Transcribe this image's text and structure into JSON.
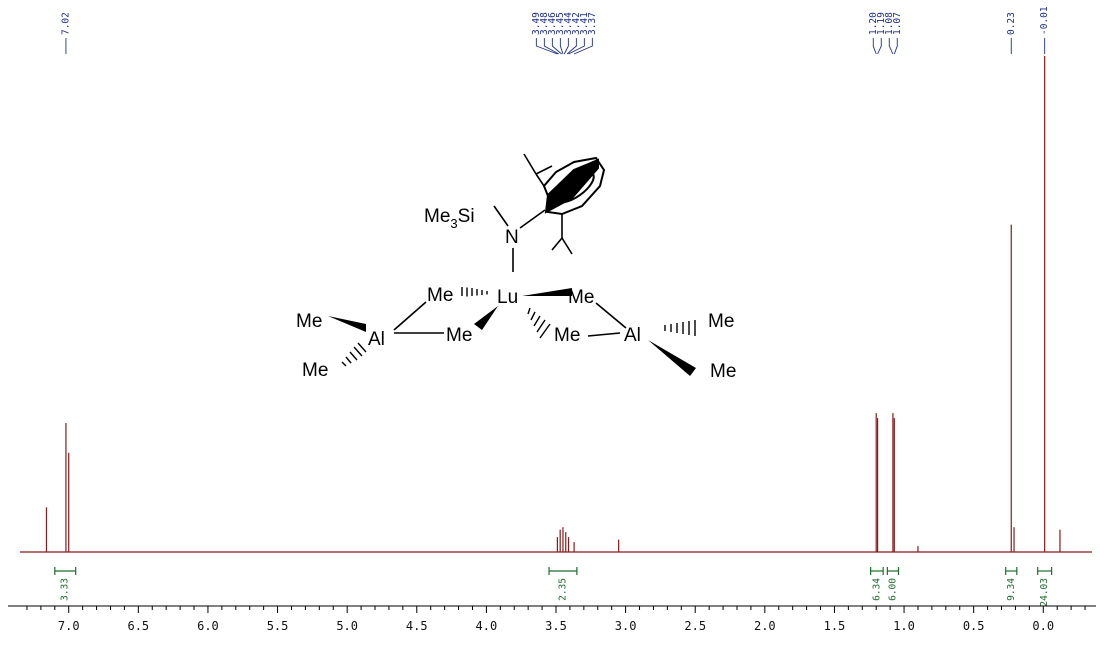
{
  "chart_data": {
    "type": "line",
    "title": "",
    "xlabel": "",
    "ylabel": "",
    "x_axis": {
      "reversed": true,
      "xlim": [
        7.35,
        -0.35
      ],
      "ticks": [
        7.0,
        6.5,
        6.0,
        5.5,
        5.0,
        4.5,
        4.0,
        3.5,
        3.0,
        2.5,
        2.0,
        1.5,
        1.0,
        0.5,
        0.0
      ],
      "tick_labels": [
        "7.0",
        "6.5",
        "6.0",
        "5.5",
        "5.0",
        "4.5",
        "4.0",
        "3.5",
        "3.0",
        "2.5",
        "2.0",
        "1.5",
        "1.0",
        "0.5",
        "0.0"
      ]
    },
    "grid": false,
    "series": [
      {
        "color": "#8b1a1a",
        "peaks": [
          {
            "ppm": 7.16,
            "height": 0.09
          },
          {
            "ppm": 7.02,
            "height": 0.26
          },
          {
            "ppm": 7.0,
            "height": 0.2
          },
          {
            "ppm": 3.49,
            "height": 0.03
          },
          {
            "ppm": 3.47,
            "height": 0.045
          },
          {
            "ppm": 3.45,
            "height": 0.05
          },
          {
            "ppm": 3.43,
            "height": 0.04
          },
          {
            "ppm": 3.41,
            "height": 0.03
          },
          {
            "ppm": 3.37,
            "height": 0.02
          },
          {
            "ppm": 3.05,
            "height": 0.025
          },
          {
            "ppm": 1.2,
            "height": 0.28
          },
          {
            "ppm": 1.19,
            "height": 0.27
          },
          {
            "ppm": 1.08,
            "height": 0.28
          },
          {
            "ppm": 1.07,
            "height": 0.27
          },
          {
            "ppm": 0.9,
            "height": 0.012
          },
          {
            "ppm": 0.23,
            "height": 0.66
          },
          {
            "ppm": 0.21,
            "height": 0.05
          },
          {
            "ppm": -0.01,
            "height": 1.0
          },
          {
            "ppm": -0.12,
            "height": 0.045
          }
        ]
      }
    ],
    "peak_labels": [
      {
        "group": [
          7.02
        ],
        "labels": [
          "7.02"
        ]
      },
      {
        "group": [
          3.49,
          3.48,
          3.46,
          3.45,
          3.44,
          3.42,
          3.41,
          3.37
        ],
        "labels": [
          "3.49",
          "3.48",
          "3.46",
          "3.45",
          "3.44",
          "3.42",
          "3.41",
          "3.37"
        ]
      },
      {
        "group": [
          1.2,
          1.19,
          1.08,
          1.07
        ],
        "labels": [
          "1.20",
          "1.19",
          "1.08",
          "1.07"
        ]
      },
      {
        "group": [
          0.23
        ],
        "labels": [
          "0.23"
        ]
      },
      {
        "group": [
          -0.01
        ],
        "labels": [
          "-0.01"
        ]
      }
    ],
    "integrals": [
      {
        "from": 7.1,
        "to": 6.95,
        "value": "3.33"
      },
      {
        "from": 3.55,
        "to": 3.35,
        "value": "2.35"
      },
      {
        "from": 1.24,
        "to": 1.15,
        "value": "6.34"
      },
      {
        "from": 1.12,
        "to": 1.04,
        "value": "6.00"
      },
      {
        "from": 0.27,
        "to": 0.19,
        "value": "9.34"
      },
      {
        "from": 0.04,
        "to": -0.06,
        "value": "24.03"
      }
    ]
  },
  "structure": {
    "labels": {
      "me3si_prefix": "Me",
      "me3si_sub": "3",
      "me3si_suffix": "Si",
      "n": "N",
      "lu": "Lu",
      "al_left": "Al",
      "al_right": "Al",
      "me_bridge_tl": "Me",
      "me_bridge_bl": "Me",
      "me_bridge_tr": "Me",
      "me_bridge_br": "Me",
      "me_al_left_top": "Me",
      "me_al_left_bottom": "Me",
      "me_al_right_top": "Me",
      "me_al_right_bottom": "Me"
    }
  }
}
